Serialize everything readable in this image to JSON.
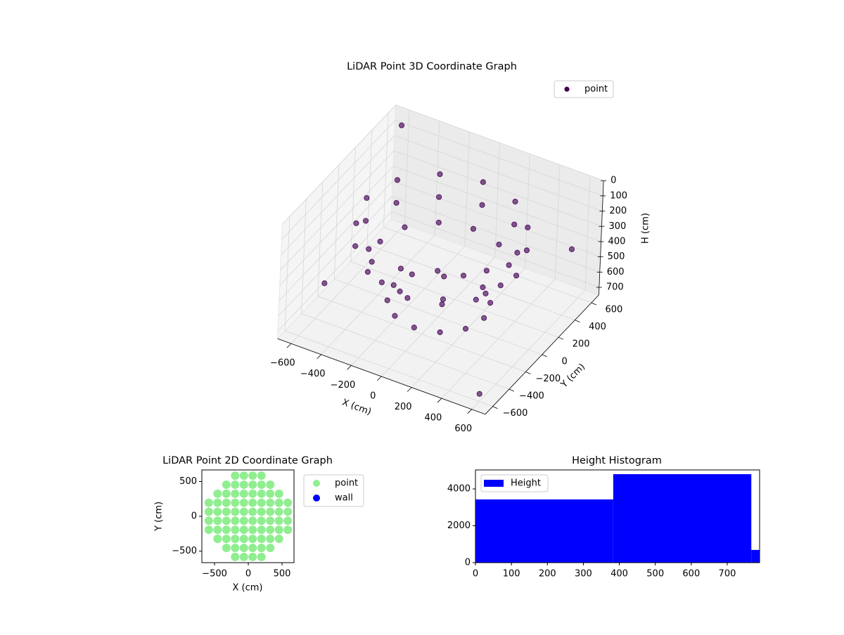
{
  "chart_data": [
    {
      "type": "scatter3d",
      "title": "LiDAR Point 3D Coordinate Graph",
      "x_label": "X (cm)",
      "y_label": "Y (cm)",
      "z_label": "H (cm)",
      "xlim": [
        -690,
        690
      ],
      "ylim": [
        -690,
        690
      ],
      "zlim": [
        0,
        750
      ],
      "z_inverted": true,
      "xticks": [
        {
          "value": -600,
          "label": "−600"
        },
        {
          "value": -400,
          "label": "−400"
        },
        {
          "value": -200,
          "label": "−200"
        },
        0,
        200,
        400,
        600
      ],
      "yticks": [
        {
          "value": -600,
          "label": "−600"
        },
        {
          "value": -400,
          "label": "−400"
        },
        {
          "value": -200,
          "label": "−200"
        },
        0,
        200,
        400,
        600
      ],
      "zticks": [
        0,
        100,
        200,
        300,
        400,
        500,
        600,
        700
      ],
      "grid": true,
      "legend": "upper right",
      "series": [
        {
          "name": "point",
          "color": "#440154",
          "x": [
            500,
            433,
            250,
            0,
            -250,
            -433,
            -500,
            -433,
            -250,
            0,
            250,
            433,
            500,
            433,
            250,
            0,
            -250,
            -433,
            -500,
            -433,
            -250,
            0,
            250,
            433,
            400,
            346,
            200,
            0,
            -200,
            -346,
            -400,
            -346,
            -200,
            0,
            200,
            346,
            300,
            260,
            150,
            0,
            -150,
            -260,
            -300,
            -260,
            -150,
            0,
            150,
            260,
            -600,
            600,
            -650,
            650
          ],
          "y": [
            0,
            250,
            433,
            500,
            433,
            250,
            0,
            -250,
            -433,
            -500,
            -433,
            -250,
            0,
            250,
            433,
            500,
            433,
            250,
            0,
            -250,
            -433,
            -500,
            -433,
            -250,
            0,
            200,
            346,
            400,
            346,
            200,
            0,
            -200,
            -346,
            -400,
            -346,
            -200,
            0,
            150,
            260,
            300,
            260,
            150,
            0,
            -150,
            -260,
            -300,
            -260,
            -150,
            600,
            -600,
            -200,
            400
          ],
          "z": [
            150,
            150,
            150,
            150,
            150,
            150,
            150,
            150,
            150,
            150,
            150,
            150,
            300,
            300,
            300,
            300,
            300,
            300,
            300,
            300,
            300,
            300,
            300,
            300,
            400,
            400,
            400,
            400,
            400,
            400,
            400,
            400,
            400,
            400,
            400,
            400,
            650,
            650,
            650,
            650,
            650,
            650,
            650,
            650,
            650,
            650,
            650,
            650,
            50,
            700,
            650,
            300
          ]
        }
      ]
    },
    {
      "type": "scatter",
      "title": "LiDAR Point 2D Coordinate Graph",
      "x_label": "X (cm)",
      "y_label": "Y (cm)",
      "xlim": [
        -688,
        677
      ],
      "ylim": [
        -667,
        667
      ],
      "xticks": [
        {
          "value": -500,
          "label": "−500"
        },
        0,
        500
      ],
      "yticks": [
        {
          "value": -500,
          "label": "−500"
        },
        0,
        500
      ],
      "legend": "outside right",
      "series": [
        {
          "name": "point",
          "color": "#90ee90",
          "x": [
            -585,
            -585,
            -585,
            -585,
            -455,
            -455,
            -455,
            -455,
            -455,
            -455,
            -325,
            -325,
            -325,
            -325,
            -325,
            -325,
            -325,
            -325,
            -195,
            -195,
            -195,
            -195,
            -195,
            -195,
            -195,
            -195,
            -195,
            -195,
            -65,
            -65,
            -65,
            -65,
            -65,
            -65,
            -65,
            -65,
            -65,
            -65,
            65,
            65,
            65,
            65,
            65,
            65,
            65,
            65,
            65,
            65,
            195,
            195,
            195,
            195,
            195,
            195,
            195,
            195,
            195,
            195,
            325,
            325,
            325,
            325,
            325,
            325,
            325,
            325,
            455,
            455,
            455,
            455,
            455,
            455,
            585,
            585,
            585,
            585
          ],
          "y": [
            -195,
            -65,
            65,
            195,
            -325,
            -195,
            -65,
            65,
            195,
            325,
            -455,
            -325,
            -195,
            -65,
            65,
            195,
            325,
            455,
            -585,
            -455,
            -325,
            -195,
            -65,
            65,
            195,
            325,
            455,
            585,
            -585,
            -455,
            -325,
            -195,
            -65,
            65,
            195,
            325,
            455,
            585,
            -585,
            -455,
            -325,
            -195,
            -65,
            65,
            195,
            325,
            455,
            585,
            -585,
            -455,
            -325,
            -195,
            -65,
            65,
            195,
            325,
            455,
            585,
            -455,
            -325,
            -195,
            -65,
            65,
            195,
            325,
            455,
            -325,
            -195,
            -65,
            65,
            195,
            325,
            -195,
            -65,
            65,
            195
          ]
        },
        {
          "name": "wall",
          "color": "#0000ff",
          "x": [],
          "y": []
        }
      ]
    },
    {
      "type": "histogram",
      "title": "Height Histogram",
      "bins": [
        0,
        383,
        767,
        790
      ],
      "values": [
        3430,
        4800,
        690
      ],
      "xlim": [
        0,
        790
      ],
      "ylim": [
        0,
        5030
      ],
      "xticks": [
        0,
        100,
        200,
        300,
        400,
        500,
        600,
        700
      ],
      "yticks": [
        0,
        2000,
        4000
      ],
      "legend": "upper left",
      "series_name": "Height",
      "color": "#0000ff"
    }
  ]
}
